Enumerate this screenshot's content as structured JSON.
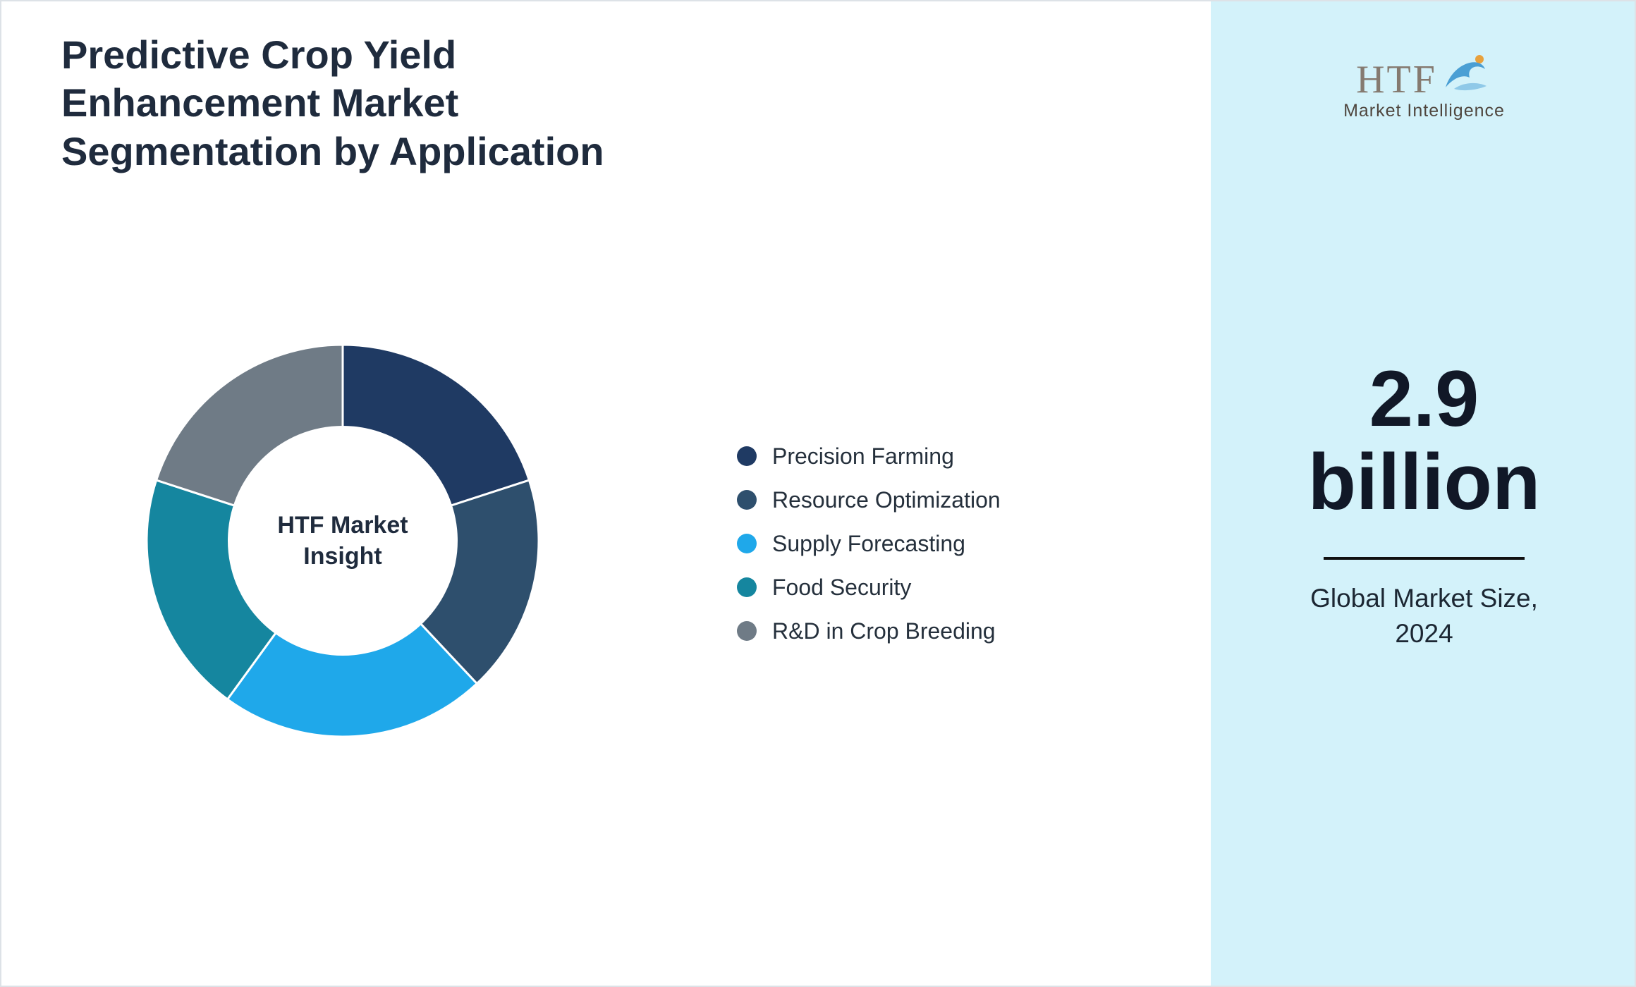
{
  "title": "Predictive Crop Yield Enhancement Market Segmentation by Application",
  "chart_data": {
    "type": "pie",
    "donut": true,
    "title": "Predictive Crop Yield Enhancement Market Segmentation by Application",
    "center_label": "HTF Market Insight",
    "legend_position": "right",
    "segments": [
      {
        "label": "Precision Farming",
        "value": 20,
        "color": "#1f3a63"
      },
      {
        "label": "Resource Optimization",
        "value": 18,
        "color": "#2e4f6d"
      },
      {
        "label": "Supply Forecasting",
        "value": 22,
        "color": "#1fa8ea"
      },
      {
        "label": "Food Security",
        "value": 20,
        "color": "#15869f"
      },
      {
        "label": "R&D in Crop Breeding",
        "value": 20,
        "color": "#6f7b86"
      }
    ]
  },
  "side_panel": {
    "background": "#d3f2fa",
    "logo": {
      "text": "HTF",
      "subtext": "Market Intelligence",
      "dolphin_color": "#4a9fd4",
      "accent_color": "#e8a13c"
    },
    "market_size": {
      "value_line1": "2.9",
      "value_line2": "billion",
      "caption": "Global Market Size, 2024"
    }
  }
}
